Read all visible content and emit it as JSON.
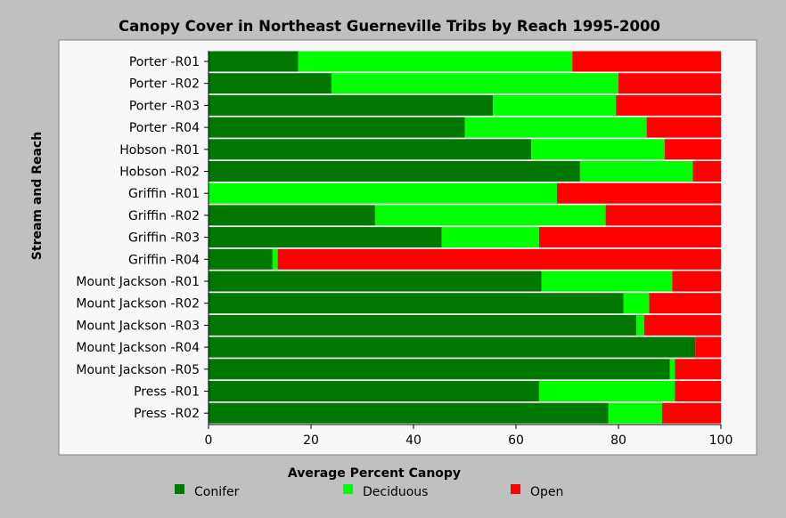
{
  "chart_data": {
    "type": "bar",
    "orientation": "horizontal",
    "stacked": true,
    "title": "Canopy Cover in Northeast Guerneville Tribs by Reach 1995-2000",
    "xlabel": "Average Percent Canopy",
    "ylabel": "Stream and Reach",
    "xlim": [
      0,
      100
    ],
    "xticks": [
      "0",
      "20",
      "40",
      "60",
      "80",
      "100"
    ],
    "grid": false,
    "legend_position": "bottom",
    "categories": [
      "Porter -R01",
      "Porter -R02",
      "Porter -R03",
      "Porter -R04",
      "Hobson -R01",
      "Hobson -R02",
      "Griffin -R01",
      "Griffin -R02",
      "Griffin -R03",
      "Griffin -R04",
      "Mount Jackson -R01",
      "Mount Jackson -R02",
      "Mount Jackson -R03",
      "Mount Jackson -R04",
      "Mount Jackson -R05",
      "Press -R01",
      "Press -R02"
    ],
    "series": [
      {
        "name": "Conifer",
        "color": "#007700",
        "values": [
          17.5,
          24,
          55.5,
          50,
          63,
          72.5,
          0,
          32.5,
          45.5,
          12.5,
          65,
          81,
          83.5,
          95,
          90,
          64.5,
          78
        ]
      },
      {
        "name": "Deciduous",
        "color": "#00ff00",
        "values": [
          53.5,
          56,
          24,
          35.5,
          26,
          22,
          68,
          45,
          19,
          1,
          25.5,
          5,
          1.5,
          0,
          1,
          26.5,
          10.5
        ]
      },
      {
        "name": "Open",
        "color": "#ff0000",
        "values": [
          29,
          20,
          20.5,
          14.5,
          11,
          5.5,
          32,
          22.5,
          35.5,
          86.5,
          9.5,
          14,
          15,
          5,
          9,
          9,
          11.5
        ]
      }
    ]
  }
}
